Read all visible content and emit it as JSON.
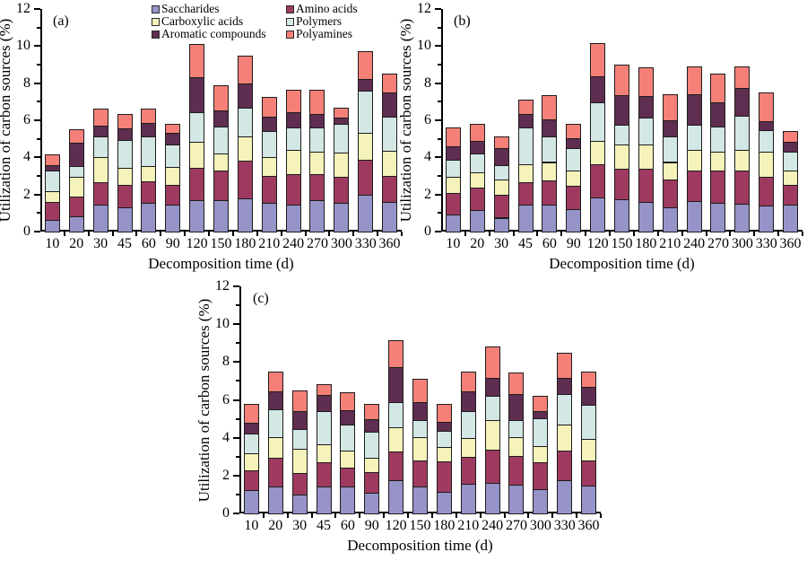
{
  "figure": {
    "background": "#ffffff",
    "text_color": "#000000",
    "legend": {
      "left_column": [
        {
          "label": "Saccharides",
          "color": "#9693c8"
        },
        {
          "label": "Carboxylic acids",
          "color": "#f5f2ba"
        },
        {
          "label": "Aromatic compounds",
          "color": "#5e2d50"
        }
      ],
      "right_column": [
        {
          "label": "Amino acids",
          "color": "#9e3a5f"
        },
        {
          "label": "Polymers",
          "color": "#d3e7e5"
        },
        {
          "label": "Polyamines",
          "color": "#f58078"
        }
      ]
    }
  },
  "chart_data": [
    {
      "type": "bar",
      "stacked": true,
      "panel_label": "(a)",
      "xlabel": "Decomposition time (d)",
      "ylabel": "Utilization of carbon sources (%)",
      "ylim": [
        0,
        12
      ],
      "yticks": [
        0,
        2,
        4,
        6,
        8,
        10,
        12
      ],
      "grid": false,
      "legend_position": "top-center-shared",
      "categories": [
        "10",
        "20",
        "30",
        "45",
        "60",
        "90",
        "120",
        "150",
        "180",
        "210",
        "240",
        "270",
        "300",
        "330",
        "360"
      ],
      "series": [
        {
          "name": "Saccharides",
          "color": "#9693c8",
          "values": [
            0.65,
            0.8,
            1.45,
            1.3,
            1.55,
            1.45,
            1.7,
            1.7,
            1.8,
            1.55,
            1.45,
            1.7,
            1.55,
            2.0,
            1.6
          ]
        },
        {
          "name": "Amino acids",
          "color": "#9e3a5f",
          "values": [
            0.95,
            1.1,
            1.2,
            1.2,
            1.15,
            1.05,
            1.75,
            1.6,
            2.0,
            1.45,
            1.65,
            1.4,
            1.4,
            1.85,
            1.4
          ]
        },
        {
          "name": "Carboxylic acids",
          "color": "#f5f2ba",
          "values": [
            0.6,
            1.05,
            1.35,
            0.95,
            0.85,
            1.0,
            1.4,
            0.9,
            1.35,
            1.0,
            1.3,
            1.2,
            1.3,
            1.45,
            1.35
          ]
        },
        {
          "name": "Polymers",
          "color": "#d3e7e5",
          "values": [
            1.1,
            0.6,
            1.15,
            1.5,
            1.6,
            1.2,
            1.6,
            1.45,
            1.55,
            1.4,
            1.2,
            1.3,
            1.55,
            2.3,
            1.85
          ]
        },
        {
          "name": "Aromatic compounds",
          "color": "#5e2d50",
          "values": [
            0.3,
            1.25,
            0.55,
            0.6,
            0.7,
            0.6,
            1.85,
            0.9,
            1.3,
            0.8,
            0.85,
            0.75,
            0.35,
            0.65,
            1.3
          ]
        },
        {
          "name": "Polyamines",
          "color": "#f58078",
          "values": [
            0.55,
            0.7,
            0.95,
            0.8,
            0.8,
            0.5,
            1.8,
            1.35,
            1.5,
            1.05,
            1.2,
            1.3,
            0.55,
            1.5,
            1.0
          ]
        }
      ]
    },
    {
      "type": "bar",
      "stacked": true,
      "panel_label": "(b)",
      "xlabel": "Decomposition time (d)",
      "ylabel": "Utilization of carbon sources (%)",
      "ylim": [
        0,
        12
      ],
      "yticks": [
        0,
        2,
        4,
        6,
        8,
        10,
        12
      ],
      "grid": false,
      "categories": [
        "10",
        "20",
        "30",
        "45",
        "60",
        "90",
        "120",
        "150",
        "180",
        "210",
        "240",
        "270",
        "300",
        "330",
        "360"
      ],
      "series": [
        {
          "name": "Saccharides",
          "color": "#9693c8",
          "values": [
            0.9,
            1.15,
            0.75,
            1.45,
            1.45,
            1.2,
            1.85,
            1.75,
            1.6,
            1.3,
            1.65,
            1.55,
            1.5,
            1.4,
            1.45
          ]
        },
        {
          "name": "Amino acids",
          "color": "#9e3a5f",
          "values": [
            1.2,
            1.2,
            1.25,
            1.2,
            1.3,
            1.25,
            1.8,
            1.65,
            1.8,
            1.5,
            1.65,
            1.75,
            1.8,
            1.55,
            1.05
          ]
        },
        {
          "name": "Carboxylic acids",
          "color": "#f5f2ba",
          "values": [
            0.85,
            0.85,
            0.8,
            1.0,
            1.0,
            0.85,
            1.25,
            1.3,
            1.3,
            0.95,
            1.1,
            1.0,
            1.1,
            1.35,
            0.8
          ]
        },
        {
          "name": "Polymers",
          "color": "#d3e7e5",
          "values": [
            0.9,
            1.0,
            0.8,
            1.95,
            1.4,
            1.2,
            2.05,
            1.05,
            1.45,
            1.4,
            1.35,
            1.35,
            1.85,
            1.15,
            1.0
          ]
        },
        {
          "name": "Aromatic compounds",
          "color": "#5e2d50",
          "values": [
            0.75,
            0.7,
            0.9,
            0.75,
            0.9,
            0.55,
            1.4,
            1.6,
            1.15,
            0.85,
            1.65,
            1.3,
            1.5,
            0.5,
            0.55
          ]
        },
        {
          "name": "Polyamines",
          "color": "#f58078",
          "values": [
            1.0,
            0.9,
            0.65,
            0.75,
            1.3,
            0.75,
            1.8,
            1.65,
            1.55,
            1.4,
            1.5,
            1.55,
            1.15,
            1.55,
            0.55
          ]
        }
      ]
    },
    {
      "type": "bar",
      "stacked": true,
      "panel_label": "(c)",
      "xlabel": "Decomposition time (d)",
      "ylabel": "Utilization of carbon sources (%)",
      "ylim": [
        0,
        12
      ],
      "yticks": [
        0,
        2,
        4,
        6,
        8,
        10,
        12
      ],
      "grid": false,
      "categories": [
        "10",
        "20",
        "30",
        "45",
        "60",
        "90",
        "120",
        "150",
        "180",
        "210",
        "240",
        "270",
        "300",
        "330",
        "360"
      ],
      "series": [
        {
          "name": "Saccharides",
          "color": "#9693c8",
          "values": [
            1.25,
            1.4,
            1.0,
            1.4,
            1.4,
            1.1,
            1.75,
            1.4,
            1.15,
            1.55,
            1.6,
            1.5,
            1.3,
            1.75,
            1.45
          ]
        },
        {
          "name": "Amino acids",
          "color": "#9e3a5f",
          "values": [
            1.05,
            1.55,
            1.15,
            1.3,
            1.0,
            1.1,
            1.5,
            1.4,
            1.6,
            1.45,
            1.75,
            1.55,
            1.4,
            1.55,
            1.35
          ]
        },
        {
          "name": "Carboxylic acids",
          "color": "#f5f2ba",
          "values": [
            0.9,
            1.1,
            1.25,
            0.95,
            0.9,
            0.75,
            1.3,
            1.25,
            0.75,
            1.0,
            1.6,
            1.0,
            0.85,
            1.4,
            1.15
          ]
        },
        {
          "name": "Polymers",
          "color": "#d3e7e5",
          "values": [
            1.0,
            1.45,
            1.05,
            1.75,
            1.4,
            1.35,
            1.35,
            0.9,
            0.85,
            1.4,
            1.25,
            0.9,
            1.5,
            1.6,
            1.8
          ]
        },
        {
          "name": "Aromatic compounds",
          "color": "#5e2d50",
          "values": [
            0.6,
            0.95,
            0.95,
            0.85,
            0.75,
            0.7,
            1.85,
            0.95,
            0.5,
            1.05,
            0.95,
            1.35,
            0.35,
            0.85,
            0.95
          ]
        },
        {
          "name": "Polyamines",
          "color": "#f58078",
          "values": [
            1.0,
            1.05,
            1.1,
            0.6,
            0.95,
            0.8,
            1.4,
            1.2,
            0.95,
            1.05,
            1.65,
            1.15,
            0.8,
            1.35,
            0.8
          ]
        }
      ]
    }
  ]
}
